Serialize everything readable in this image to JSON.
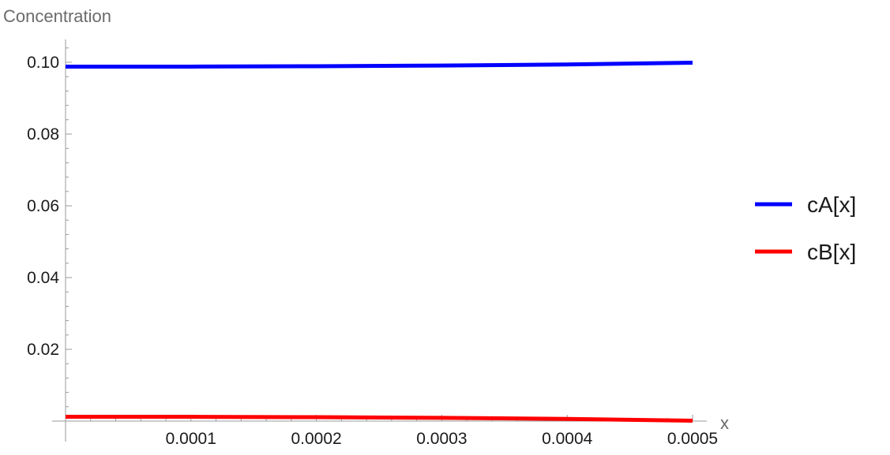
{
  "chart_data": {
    "type": "line",
    "title": "",
    "xlabel": "x",
    "ylabel": "Concentration",
    "xlim": [
      0,
      0.0005
    ],
    "ylim": [
      0,
      0.1
    ],
    "x_ticks": [
      {
        "value": 0.0001,
        "label": "0.0001"
      },
      {
        "value": 0.0002,
        "label": "0.0002"
      },
      {
        "value": 0.0003,
        "label": "0.0003"
      },
      {
        "value": 0.0004,
        "label": "0.0004"
      },
      {
        "value": 0.0005,
        "label": "0.0005"
      }
    ],
    "y_ticks": [
      {
        "value": 0.02,
        "label": "0.02"
      },
      {
        "value": 0.04,
        "label": "0.04"
      },
      {
        "value": 0.06,
        "label": "0.06"
      },
      {
        "value": 0.08,
        "label": "0.08"
      },
      {
        "value": 0.1,
        "label": "0.10"
      }
    ],
    "grid": false,
    "legend_position": "right",
    "series": [
      {
        "name": "cA[x]",
        "color": "#0000ff",
        "x": [
          0,
          0.0001,
          0.0002,
          0.0003,
          0.0004,
          0.0005
        ],
        "y": [
          0.0988,
          0.0988,
          0.0989,
          0.0991,
          0.0994,
          0.0999
        ]
      },
      {
        "name": "cB[x]",
        "color": "#ff0000",
        "x": [
          0,
          0.0001,
          0.0002,
          0.0003,
          0.0004,
          0.0005
        ],
        "y": [
          0.0012,
          0.0012,
          0.0011,
          0.0009,
          0.0006,
          0.0001
        ]
      }
    ]
  }
}
